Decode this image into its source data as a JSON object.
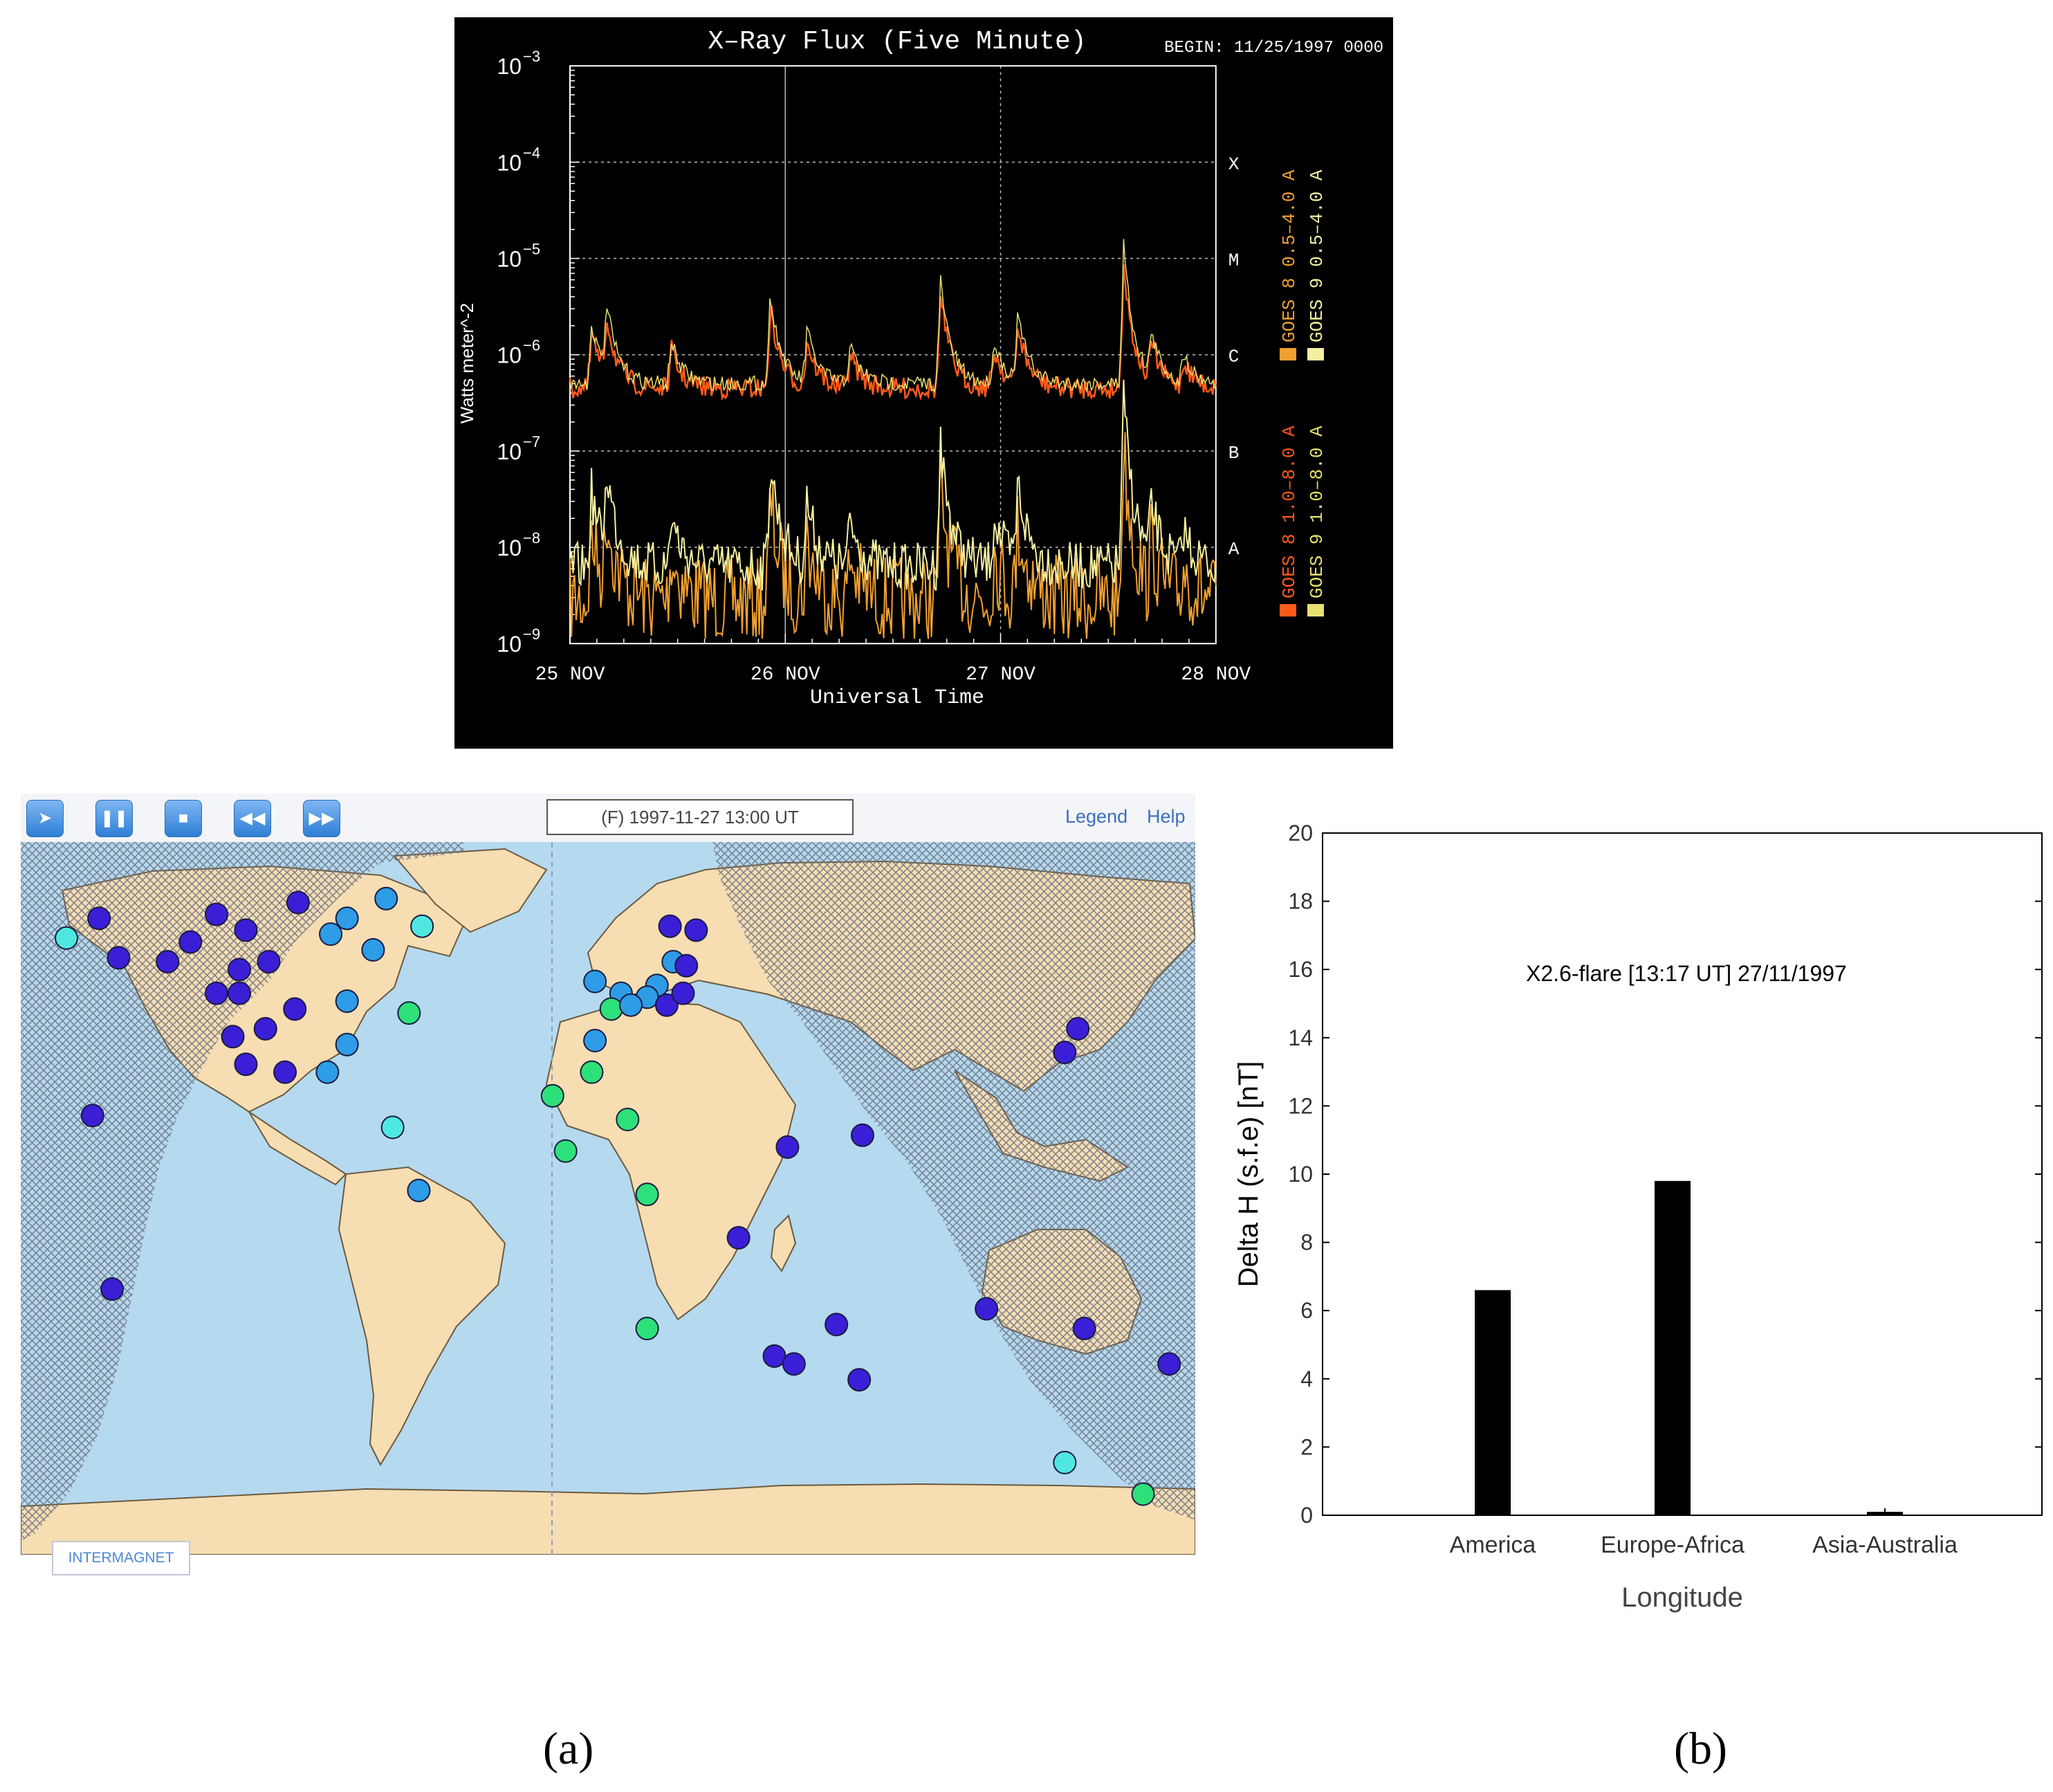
{
  "xray": {
    "title": "X–Ray Flux (Five Minute)",
    "begin": "BEGIN: 11/25/1997 0000",
    "ylabel": "Watts meter^-2",
    "y_ticks": [
      "10",
      "10",
      "10",
      "10",
      "10",
      "10",
      "10"
    ],
    "y_exponents": [
      "−3",
      "−4",
      "−5",
      "−6",
      "−7",
      "−8",
      "−9"
    ],
    "class_labels": [
      "X",
      "M",
      "C",
      "B",
      "A"
    ],
    "x_ticks": [
      "25 NOV",
      "26 NOV",
      "27 NOV",
      "28 NOV"
    ],
    "xlabel": "Universal Time",
    "legend": [
      "GOES 8 1.0–8.0 A",
      "GOES 9 1.0–8.0 A",
      "GOES 8 0.5–4.0 A",
      "GOES 9 0.5–4.0 A"
    ],
    "colors": {
      "goes8_long": "#ff5a1a",
      "goes9_long": "#e8e070",
      "goes8_short": "#f0a030",
      "goes9_short": "#f5f0a0"
    }
  },
  "map": {
    "time_label": "(F) 1997-11-27 13:00 UT",
    "legend_link": "Legend",
    "help_link": "Help",
    "logo_text": "INTERMAGNET",
    "toolbar_icons": [
      "forward-icon",
      "pause-icon",
      "stop-icon",
      "rewind-icon",
      "fast-forward-icon"
    ],
    "colors": {
      "ocean": "#b5d9ee",
      "land": "#f7ddb2",
      "night_hatch": "#7a8090"
    },
    "stations": [
      {
        "lon": -166,
        "lat": 66,
        "c": "cyan"
      },
      {
        "lon": -156,
        "lat": 71,
        "c": "indigo"
      },
      {
        "lon": -150,
        "lat": 61,
        "c": "indigo"
      },
      {
        "lon": -135,
        "lat": 60,
        "c": "indigo"
      },
      {
        "lon": -128,
        "lat": 65,
        "c": "indigo"
      },
      {
        "lon": -120,
        "lat": 72,
        "c": "indigo"
      },
      {
        "lon": -111,
        "lat": 68,
        "c": "indigo"
      },
      {
        "lon": -95,
        "lat": 75,
        "c": "indigo"
      },
      {
        "lon": -85,
        "lat": 67,
        "c": "skyblue"
      },
      {
        "lon": -80,
        "lat": 71,
        "c": "skyblue"
      },
      {
        "lon": -68,
        "lat": 76,
        "c": "skyblue"
      },
      {
        "lon": -57,
        "lat": 69,
        "c": "cyan"
      },
      {
        "lon": -113,
        "lat": 58,
        "c": "indigo"
      },
      {
        "lon": -104,
        "lat": 60,
        "c": "indigo"
      },
      {
        "lon": -120,
        "lat": 52,
        "c": "indigo"
      },
      {
        "lon": -113,
        "lat": 52,
        "c": "indigo"
      },
      {
        "lon": -96,
        "lat": 48,
        "c": "indigo"
      },
      {
        "lon": -80,
        "lat": 50,
        "c": "skyblue"
      },
      {
        "lon": -72,
        "lat": 63,
        "c": "skyblue"
      },
      {
        "lon": -61,
        "lat": 47,
        "c": "green"
      },
      {
        "lon": -115,
        "lat": 41,
        "c": "indigo"
      },
      {
        "lon": -105,
        "lat": 43,
        "c": "indigo"
      },
      {
        "lon": -111,
        "lat": 34,
        "c": "indigo"
      },
      {
        "lon": -99,
        "lat": 32,
        "c": "indigo"
      },
      {
        "lon": -80,
        "lat": 39,
        "c": "skyblue"
      },
      {
        "lon": -86,
        "lat": 32,
        "c": "skyblue"
      },
      {
        "lon": -66,
        "lat": 18,
        "c": "cyan"
      },
      {
        "lon": -58,
        "lat": 2,
        "c": "skyblue"
      },
      {
        "lon": -158,
        "lat": 21,
        "c": "indigo"
      },
      {
        "lon": -152,
        "lat": -23,
        "c": "indigo"
      },
      {
        "lon": 19,
        "lat": 69,
        "c": "indigo"
      },
      {
        "lon": 27,
        "lat": 68,
        "c": "indigo"
      },
      {
        "lon": 20,
        "lat": 60,
        "c": "skyblue"
      },
      {
        "lon": 15,
        "lat": 54,
        "c": "skyblue"
      },
      {
        "lon": 12,
        "lat": 51,
        "c": "skyblue"
      },
      {
        "lon": 4,
        "lat": 52,
        "c": "skyblue"
      },
      {
        "lon": 1,
        "lat": 48,
        "c": "green"
      },
      {
        "lon": -4,
        "lat": 55,
        "c": "skyblue"
      },
      {
        "lon": 7,
        "lat": 49,
        "c": "skyblue"
      },
      {
        "lon": 18,
        "lat": 49,
        "c": "indigo"
      },
      {
        "lon": 23,
        "lat": 52,
        "c": "indigo"
      },
      {
        "lon": 24,
        "lat": 59,
        "c": "indigo"
      },
      {
        "lon": -4,
        "lat": 40,
        "c": "skyblue"
      },
      {
        "lon": -5,
        "lat": 32,
        "c": "green"
      },
      {
        "lon": -17,
        "lat": 26,
        "c": "green"
      },
      {
        "lon": 6,
        "lat": 20,
        "c": "green"
      },
      {
        "lon": -13,
        "lat": 12,
        "c": "green"
      },
      {
        "lon": 12,
        "lat": 1,
        "c": "green"
      },
      {
        "lon": 40,
        "lat": -10,
        "c": "indigo"
      },
      {
        "lon": 12,
        "lat": -33,
        "c": "green"
      },
      {
        "lon": 51,
        "lat": -40,
        "c": "indigo"
      },
      {
        "lon": 57,
        "lat": -42,
        "c": "indigo"
      },
      {
        "lon": 70,
        "lat": -32,
        "c": "indigo"
      },
      {
        "lon": 77,
        "lat": -46,
        "c": "indigo"
      },
      {
        "lon": 55,
        "lat": 13,
        "c": "indigo"
      },
      {
        "lon": 78,
        "lat": 16,
        "c": "indigo"
      },
      {
        "lon": 140,
        "lat": 37,
        "c": "indigo"
      },
      {
        "lon": 144,
        "lat": 43,
        "c": "indigo"
      },
      {
        "lon": 116,
        "lat": -28,
        "c": "indigo"
      },
      {
        "lon": 146,
        "lat": -33,
        "c": "indigo"
      },
      {
        "lon": 172,
        "lat": -42,
        "c": "indigo"
      },
      {
        "lon": 140,
        "lat": -67,
        "c": "cyan"
      },
      {
        "lon": 164,
        "lat": -75,
        "c": "green"
      }
    ],
    "station_colors": {
      "indigo": "#3a1fd6",
      "skyblue": "#2e9ce6",
      "cyan": "#4fe8e0",
      "green": "#2ee07a"
    }
  },
  "chart_data": {
    "type": "bar",
    "title": "X2.6-flare [13:17 UT] 27/11/1997",
    "categories": [
      "America",
      "Europe-Africa",
      "Asia-Australia"
    ],
    "values": [
      6.6,
      9.8,
      0.1
    ],
    "xlabel": "Longitude",
    "ylabel": "Delta H (s.f.e) [nT]",
    "ylim": [
      0,
      20
    ],
    "yticks": [
      0,
      2,
      4,
      6,
      8,
      10,
      12,
      14,
      16,
      18,
      20
    ],
    "grid": false
  },
  "captions": {
    "a": "(a)",
    "b": "(b)"
  }
}
